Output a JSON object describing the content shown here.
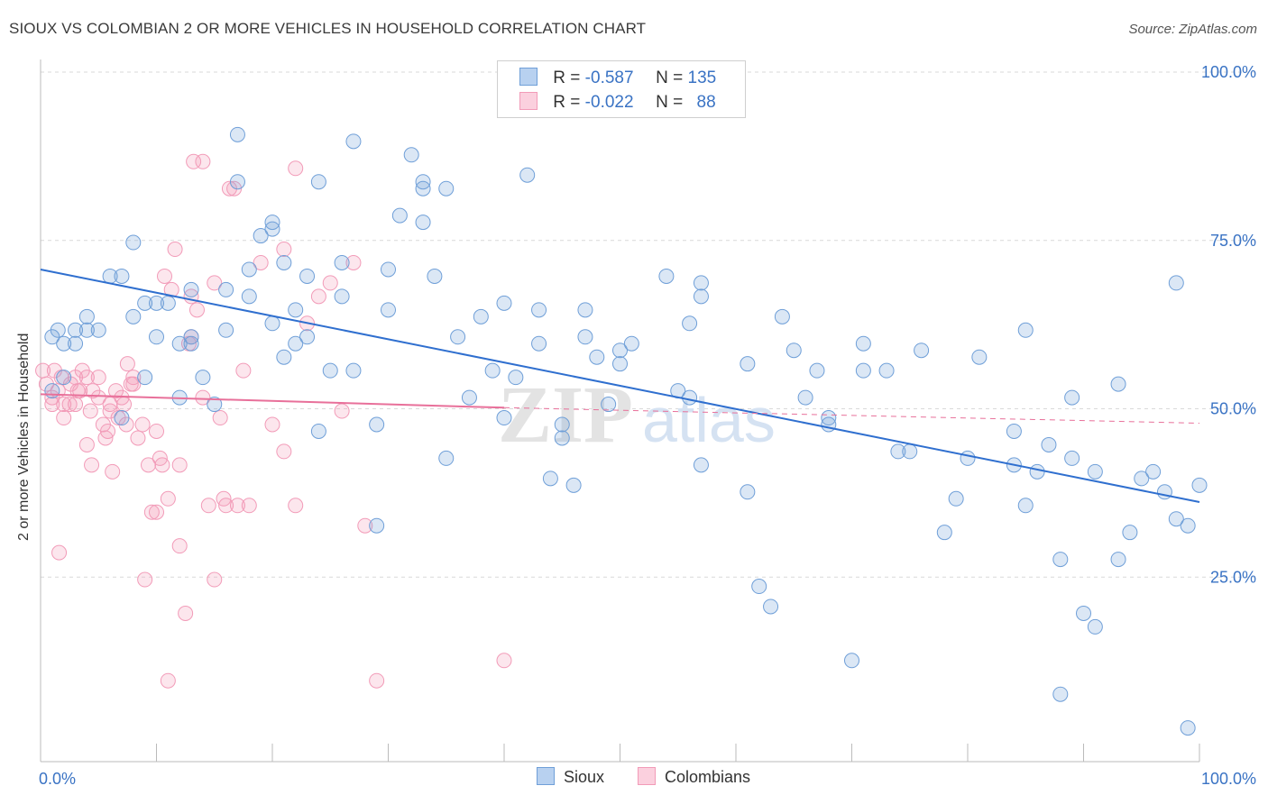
{
  "title": "SIOUX VS COLOMBIAN 2 OR MORE VEHICLES IN HOUSEHOLD CORRELATION CHART",
  "source": "Source: ZipAtlas.com",
  "legend": {
    "rows": [
      {
        "r_label": "R =",
        "r_value": "-0.587",
        "n_label": "N =",
        "n_value": "135"
      },
      {
        "r_label": "R =",
        "r_value": "-0.022",
        "n_label": "N =",
        "n_value": "88"
      }
    ]
  },
  "bottom_legend": {
    "sioux": "Sioux",
    "colombians": "Colombians"
  },
  "chart_data": {
    "type": "scatter",
    "title": "SIOUX VS COLOMBIAN 2 OR MORE VEHICLES IN HOUSEHOLD CORRELATION CHART",
    "xlabel": "",
    "ylabel": "2 or more Vehicles in Household",
    "xlim": [
      0,
      100
    ],
    "ylim": [
      0,
      100
    ],
    "x_tick_labels": [
      "0.0%",
      "100.0%"
    ],
    "y_tick_labels": [
      "25.0%",
      "50.0%",
      "75.0%",
      "100.0%"
    ],
    "y_ticks": [
      25,
      50,
      75,
      100
    ],
    "grid": true,
    "legend_position": "top-center",
    "colors": {
      "sioux": "#6f9fd8",
      "colombians": "#f29bb8",
      "sioux_line": "#2f6fcf",
      "colombians_line": "#e8709a"
    },
    "series": [
      {
        "name": "Sioux",
        "r": -0.587,
        "n": 135,
        "trend": {
          "x0": 0,
          "y0": 73,
          "x1": 100,
          "y1": 38.5
        },
        "points": [
          [
            1,
            63
          ],
          [
            1,
            55
          ],
          [
            1.5,
            64
          ],
          [
            2,
            62
          ],
          [
            2,
            57
          ],
          [
            3,
            64
          ],
          [
            3,
            62
          ],
          [
            4,
            64
          ],
          [
            4,
            66
          ],
          [
            5,
            64
          ],
          [
            6,
            72
          ],
          [
            7,
            72
          ],
          [
            7,
            51
          ],
          [
            8,
            66
          ],
          [
            8,
            77
          ],
          [
            9,
            57
          ],
          [
            9,
            68
          ],
          [
            10,
            63
          ],
          [
            10,
            68
          ],
          [
            11,
            68
          ],
          [
            12,
            62
          ],
          [
            12,
            54
          ],
          [
            13,
            63
          ],
          [
            13,
            62
          ],
          [
            13,
            70
          ],
          [
            14,
            57
          ],
          [
            15,
            53
          ],
          [
            16,
            64
          ],
          [
            16,
            70
          ],
          [
            17,
            93
          ],
          [
            17,
            86
          ],
          [
            18,
            69
          ],
          [
            18,
            73
          ],
          [
            19,
            78
          ],
          [
            20,
            79
          ],
          [
            20,
            80
          ],
          [
            20,
            65
          ],
          [
            21,
            74
          ],
          [
            21,
            60
          ],
          [
            22,
            62
          ],
          [
            22,
            67
          ],
          [
            23,
            63
          ],
          [
            23,
            72
          ],
          [
            24,
            49
          ],
          [
            24,
            86
          ],
          [
            25,
            58
          ],
          [
            26,
            74
          ],
          [
            26,
            69
          ],
          [
            27,
            58
          ],
          [
            27,
            92
          ],
          [
            29,
            35
          ],
          [
            29,
            50
          ],
          [
            30,
            73
          ],
          [
            30,
            67
          ],
          [
            31,
            81
          ],
          [
            32,
            90
          ],
          [
            33,
            85
          ],
          [
            33,
            86
          ],
          [
            33,
            80
          ],
          [
            34,
            72
          ],
          [
            35,
            45
          ],
          [
            35,
            85
          ],
          [
            36,
            63
          ],
          [
            37,
            54
          ],
          [
            38,
            66
          ],
          [
            39,
            58
          ],
          [
            40,
            68
          ],
          [
            40,
            51
          ],
          [
            41,
            57
          ],
          [
            42,
            87
          ],
          [
            43,
            62
          ],
          [
            43,
            67
          ],
          [
            44,
            42
          ],
          [
            45,
            50
          ],
          [
            45,
            48
          ],
          [
            46,
            41
          ],
          [
            47,
            67
          ],
          [
            47,
            63
          ],
          [
            48,
            60
          ],
          [
            49,
            53
          ],
          [
            50,
            61
          ],
          [
            50,
            59
          ],
          [
            51,
            62
          ],
          [
            54,
            72
          ],
          [
            55,
            55
          ],
          [
            56,
            54
          ],
          [
            57,
            71
          ],
          [
            56,
            65
          ],
          [
            57,
            44
          ],
          [
            57,
            69
          ],
          [
            61,
            59
          ],
          [
            61,
            40
          ],
          [
            62,
            26
          ],
          [
            63,
            23
          ],
          [
            64,
            66
          ],
          [
            65,
            61
          ],
          [
            66,
            54
          ],
          [
            67,
            58
          ],
          [
            68,
            51
          ],
          [
            68,
            50
          ],
          [
            70,
            15
          ],
          [
            71,
            62
          ],
          [
            71,
            58
          ],
          [
            73,
            58
          ],
          [
            74,
            46
          ],
          [
            75,
            46
          ],
          [
            76,
            61
          ],
          [
            78,
            34
          ],
          [
            79,
            39
          ],
          [
            80,
            45
          ],
          [
            81,
            60
          ],
          [
            84,
            44
          ],
          [
            84,
            49
          ],
          [
            85,
            64
          ],
          [
            85,
            38
          ],
          [
            86,
            43
          ],
          [
            87,
            47
          ],
          [
            88,
            30
          ],
          [
            89,
            54
          ],
          [
            89,
            45
          ],
          [
            90,
            22
          ],
          [
            91,
            20
          ],
          [
            91,
            43
          ],
          [
            93,
            30
          ],
          [
            93,
            56
          ],
          [
            94,
            34
          ],
          [
            95,
            42
          ],
          [
            96,
            43
          ],
          [
            97,
            40
          ],
          [
            98,
            36
          ],
          [
            98,
            71
          ],
          [
            99,
            35
          ],
          [
            99,
            5
          ],
          [
            100,
            41
          ],
          [
            88,
            10
          ]
        ]
      },
      {
        "name": "Colombians",
        "r": -0.022,
        "n": 88,
        "trend": {
          "x0": 0,
          "y0": 54.5,
          "x1": 40,
          "y1": 52.5,
          "dash_to_x": 100,
          "dash_to_y": 50.2
        },
        "points": [
          [
            0.2,
            58
          ],
          [
            0.5,
            56
          ],
          [
            1,
            54
          ],
          [
            1,
            53
          ],
          [
            1.2,
            58
          ],
          [
            1.5,
            55
          ],
          [
            1.6,
            31
          ],
          [
            1.8,
            57
          ],
          [
            2,
            51
          ],
          [
            2,
            53
          ],
          [
            2.5,
            53
          ],
          [
            2.6,
            56
          ],
          [
            3,
            57
          ],
          [
            3,
            53
          ],
          [
            3.2,
            55
          ],
          [
            3.4,
            55
          ],
          [
            3.6,
            58
          ],
          [
            4,
            57
          ],
          [
            4,
            47
          ],
          [
            4.3,
            52
          ],
          [
            4.4,
            44
          ],
          [
            4.5,
            55
          ],
          [
            5,
            54
          ],
          [
            5,
            57
          ],
          [
            5.4,
            50
          ],
          [
            5.6,
            48
          ],
          [
            5.8,
            49
          ],
          [
            6,
            52
          ],
          [
            6,
            53
          ],
          [
            6.2,
            43
          ],
          [
            6.5,
            55
          ],
          [
            6.7,
            51
          ],
          [
            7,
            54
          ],
          [
            7.2,
            53
          ],
          [
            7.4,
            50
          ],
          [
            7.5,
            59
          ],
          [
            7.8,
            56
          ],
          [
            8,
            56
          ],
          [
            8,
            57
          ],
          [
            8.4,
            48
          ],
          [
            8.8,
            50
          ],
          [
            9,
            27
          ],
          [
            9.3,
            44
          ],
          [
            9.6,
            37
          ],
          [
            10,
            37
          ],
          [
            10,
            49
          ],
          [
            10.3,
            45
          ],
          [
            10.5,
            44
          ],
          [
            10.7,
            72
          ],
          [
            11,
            39
          ],
          [
            11,
            12
          ],
          [
            11.3,
            70
          ],
          [
            11.6,
            76
          ],
          [
            12,
            44
          ],
          [
            12,
            32
          ],
          [
            12.5,
            22
          ],
          [
            12.8,
            62
          ],
          [
            13,
            63
          ],
          [
            13,
            69
          ],
          [
            13.2,
            89
          ],
          [
            13.5,
            67
          ],
          [
            14,
            54
          ],
          [
            14,
            89
          ],
          [
            14.5,
            38
          ],
          [
            15,
            71
          ],
          [
            15,
            27
          ],
          [
            15.5,
            51
          ],
          [
            15.8,
            39
          ],
          [
            16,
            38
          ],
          [
            16.3,
            85
          ],
          [
            16.7,
            85
          ],
          [
            17,
            38
          ],
          [
            17.5,
            58
          ],
          [
            18,
            38
          ],
          [
            19,
            74
          ],
          [
            20,
            50
          ],
          [
            21,
            76
          ],
          [
            21,
            46
          ],
          [
            22,
            88
          ],
          [
            22,
            38
          ],
          [
            23,
            65
          ],
          [
            24,
            69
          ],
          [
            25,
            71
          ],
          [
            26,
            52
          ],
          [
            27,
            74
          ],
          [
            28,
            35
          ],
          [
            29,
            12
          ],
          [
            40,
            15
          ]
        ]
      }
    ]
  }
}
